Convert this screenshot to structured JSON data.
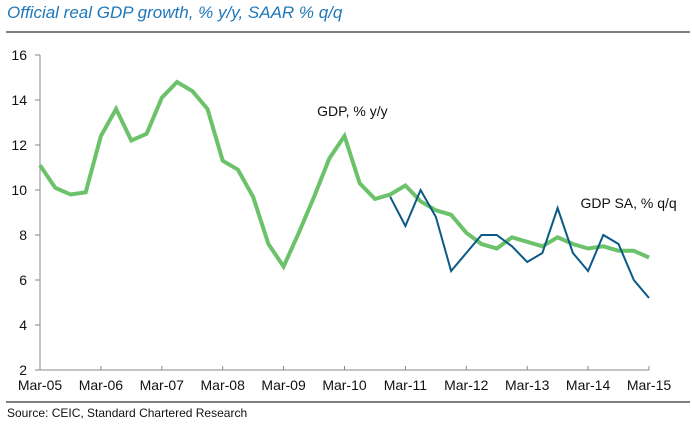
{
  "header": {
    "title": "Official real GDP growth, % y/y, SAAR % q/q"
  },
  "footer": {
    "source": "Source: CEIC, Standard Chartered Research"
  },
  "chart_data": {
    "type": "line",
    "title": "Official real GDP growth, % y/y, SAAR % q/q",
    "xlabel": "",
    "ylabel": "",
    "ylim": [
      2,
      16
    ],
    "yticks": [
      2,
      4,
      6,
      8,
      10,
      12,
      14,
      16
    ],
    "xtick_labels": [
      "Mar-05",
      "Mar-06",
      "Mar-07",
      "Mar-08",
      "Mar-09",
      "Mar-10",
      "Mar-11",
      "Mar-12",
      "Mar-13",
      "Mar-14",
      "Mar-15"
    ],
    "x_unit": "quarters since Mar-05",
    "xlim": [
      0,
      40
    ],
    "grid": false,
    "legend": "none (inline annotations)",
    "series": [
      {
        "name": "GDP, % y/y",
        "color": "#6cc26a",
        "start_quarter": 0,
        "values": [
          11.1,
          10.1,
          9.8,
          9.9,
          12.4,
          13.6,
          12.2,
          12.5,
          14.1,
          14.8,
          14.4,
          13.6,
          11.3,
          10.9,
          9.7,
          7.6,
          6.6,
          8.1,
          9.7,
          11.4,
          12.4,
          10.3,
          9.6,
          9.8,
          10.2,
          9.5,
          9.1,
          8.9,
          8.1,
          7.6,
          7.4,
          7.9,
          7.7,
          7.5,
          7.9,
          7.6,
          7.4,
          7.5,
          7.3,
          7.3,
          7.0
        ]
      },
      {
        "name": "GDP SA, % q/q",
        "color": "#0b5a86",
        "start_quarter": 23,
        "values": [
          9.7,
          8.4,
          10.0,
          8.8,
          6.4,
          7.2,
          8.0,
          8.0,
          7.5,
          6.8,
          7.2,
          9.2,
          7.2,
          6.4,
          8.0,
          7.6,
          6.0,
          5.2
        ]
      }
    ],
    "annotations": [
      {
        "text": "GDP, % y/y",
        "series": "GDP, % y/y",
        "near_quarter": 20
      },
      {
        "text": "GDP SA, % q/q",
        "series": "GDP SA, % q/q",
        "near_quarter": 37
      }
    ]
  }
}
